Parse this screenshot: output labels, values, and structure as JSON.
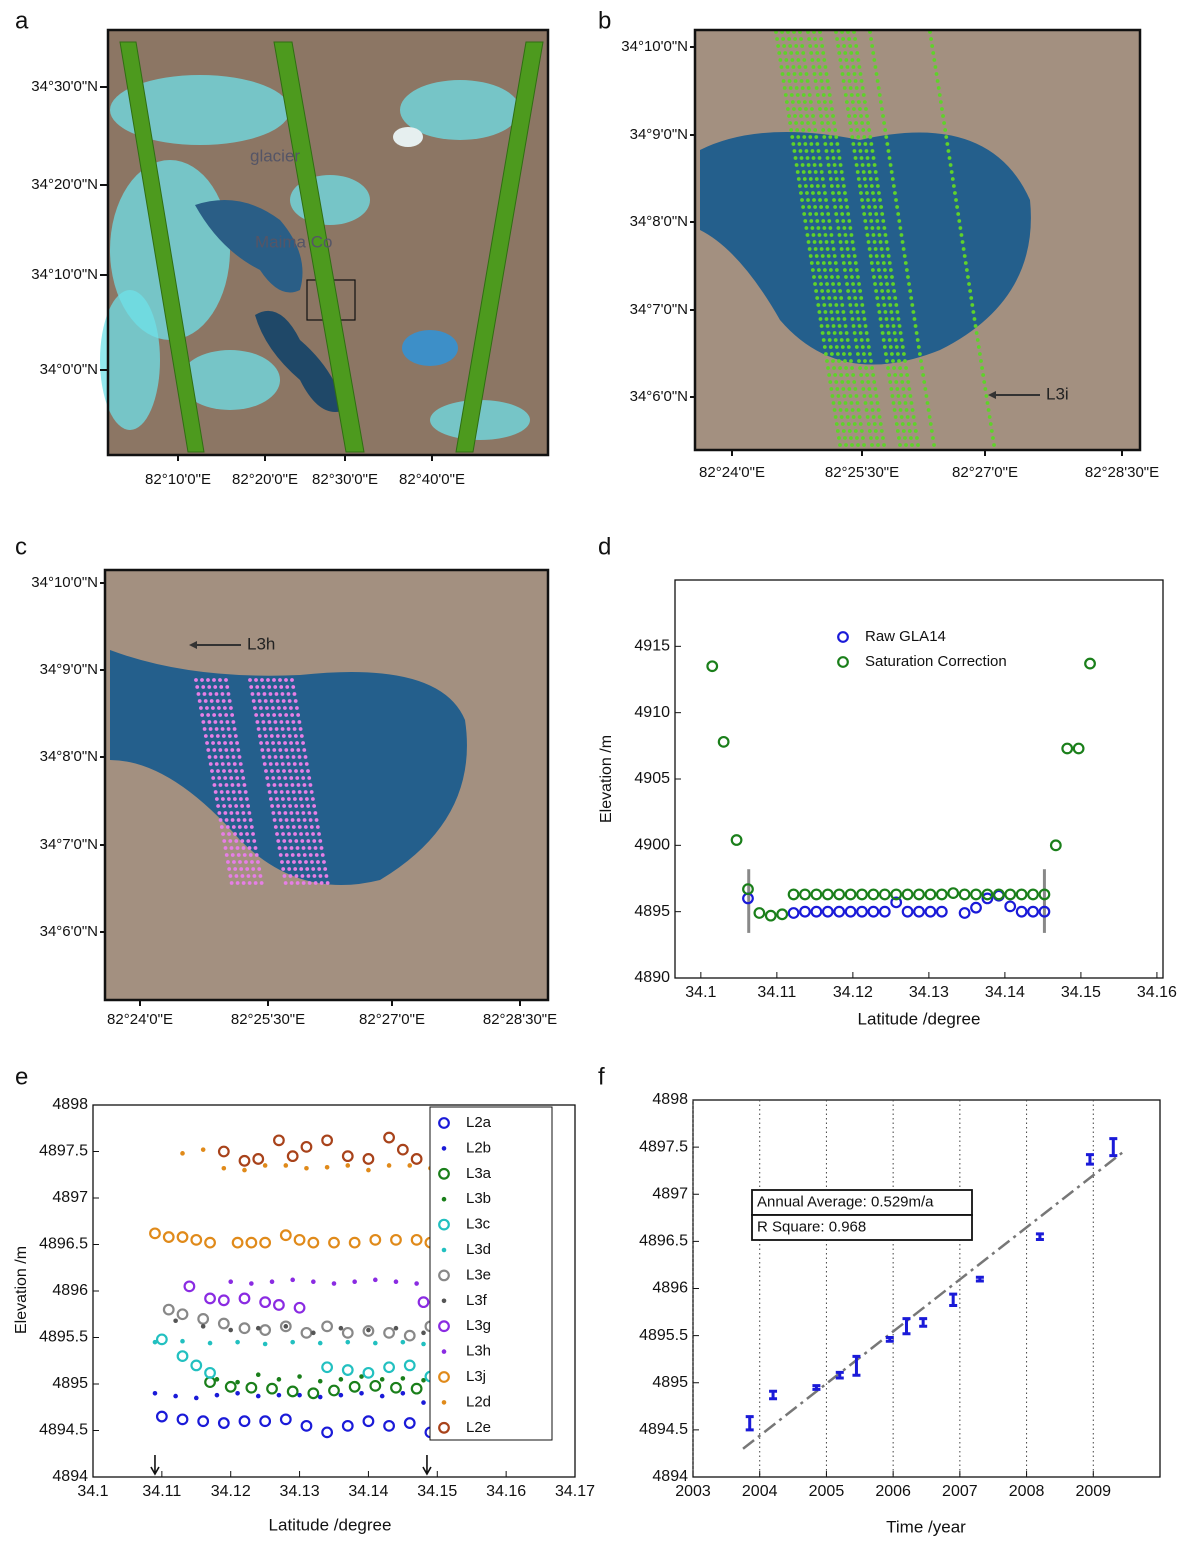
{
  "maps": [
    {
      "panel": "a",
      "yticks": [
        "34°30'0\"N",
        "34°20'0\"N",
        "34°10'0\"N",
        "34°0'0\"N"
      ],
      "xticks": [
        "82°10'0\"E",
        "82°20'0\"E",
        "82°30'0\"E",
        "82°40'0\"E"
      ],
      "annotations": [
        "glacier",
        "Maima Co"
      ]
    },
    {
      "panel": "b",
      "yticks": [
        "34°10'0\"N",
        "34°9'0\"N",
        "34°8'0\"N",
        "34°7'0\"N",
        "34°6'0\"N"
      ],
      "xticks": [
        "82°24'0\"E",
        "82°25'30\"E",
        "82°27'0\"E",
        "82°28'30\"E"
      ],
      "annotations": [
        "L3i"
      ]
    },
    {
      "panel": "c",
      "yticks": [
        "34°10'0\"N",
        "34°9'0\"N",
        "34°8'0\"N",
        "34°7'0\"N",
        "34°6'0\"N"
      ],
      "xticks": [
        "82°24'0\"E",
        "82°25'30\"E",
        "82°27'0\"E",
        "82°28'30\"E"
      ],
      "annotations": [
        "L3h"
      ]
    }
  ],
  "chart_data": [
    {
      "type": "scatter",
      "panel": "d",
      "x_label": "Latitude /degree",
      "y_label": "Elevation /m",
      "xlim": [
        34.0966,
        34.1608
      ],
      "xticks": [
        34.1,
        34.11,
        34.12,
        34.13,
        34.14,
        34.15,
        34.16
      ],
      "ylim": [
        4890,
        4920
      ],
      "yticks": [
        4890,
        4895,
        4900,
        4905,
        4910,
        4915
      ],
      "vlines": [
        34.1063,
        34.1452
      ],
      "vline_range": [
        4893.4,
        4898.2
      ],
      "series": [
        {
          "name": "Raw GLA14",
          "color": "#1a1ad8",
          "marker": "circle",
          "x": [
            34.1062,
            34.1122,
            34.1137,
            34.1152,
            34.1167,
            34.1182,
            34.1197,
            34.1212,
            34.1227,
            34.1242,
            34.1257,
            34.1272,
            34.1287,
            34.1302,
            34.1317,
            34.1347,
            34.1362,
            34.1377,
            34.1392,
            34.1407,
            34.1422,
            34.1437,
            34.1452
          ],
          "values": [
            4896.0,
            4894.9,
            4895.0,
            4895.0,
            4895.0,
            4895.0,
            4895.0,
            4895.0,
            4895.0,
            4895.0,
            4895.7,
            4895.0,
            4895.0,
            4895.0,
            4895.0,
            4894.9,
            4895.3,
            4896.0,
            4896.2,
            4895.4,
            4895.0,
            4895.0,
            4895.0
          ]
        },
        {
          "name": "Saturation Correction",
          "color": "#1a7f1a",
          "marker": "circle",
          "x": [
            34.1015,
            34.103,
            34.1047,
            34.1062,
            34.1077,
            34.1092,
            34.1107,
            34.1122,
            34.1137,
            34.1152,
            34.1167,
            34.1182,
            34.1197,
            34.1212,
            34.1227,
            34.1242,
            34.1257,
            34.1272,
            34.1287,
            34.1302,
            34.1317,
            34.1332,
            34.1347,
            34.1362,
            34.1377,
            34.1392,
            34.1407,
            34.1422,
            34.1437,
            34.1452,
            34.1467,
            34.1482,
            34.1497,
            34.1512
          ],
          "values": [
            4913.5,
            4907.8,
            4900.4,
            4896.7,
            4894.9,
            4894.7,
            4894.8,
            4896.3,
            4896.3,
            4896.3,
            4896.3,
            4896.3,
            4896.3,
            4896.3,
            4896.3,
            4896.3,
            4896.3,
            4896.3,
            4896.3,
            4896.3,
            4896.3,
            4896.4,
            4896.3,
            4896.3,
            4896.3,
            4896.3,
            4896.3,
            4896.3,
            4896.3,
            4896.3,
            4900.0,
            4907.3,
            4907.3,
            4913.7
          ]
        }
      ]
    },
    {
      "type": "scatter",
      "panel": "e",
      "x_label": "Latitude /degree",
      "y_label": "Elevation /m",
      "xlim": [
        34.1,
        34.17
      ],
      "xticks": [
        34.1,
        34.11,
        34.12,
        34.13,
        34.14,
        34.15,
        34.16,
        34.17
      ],
      "ylim": [
        4894,
        4898
      ],
      "yticks": [
        4894,
        4894.5,
        4895,
        4895.5,
        4896,
        4896.5,
        4897,
        4897.5,
        4898
      ],
      "arrows": [
        34.109,
        34.1485
      ],
      "series": [
        {
          "name": "L2a",
          "color": "#1a1ad8",
          "marker": "circle",
          "x": [
            34.11,
            34.113,
            34.116,
            34.119,
            34.122,
            34.125,
            34.128,
            34.131,
            34.134,
            34.137,
            34.14,
            34.143,
            34.146,
            34.149
          ],
          "values": [
            4894.65,
            4894.62,
            4894.6,
            4894.58,
            4894.6,
            4894.6,
            4894.62,
            4894.55,
            4894.48,
            4894.55,
            4894.6,
            4894.55,
            4894.58,
            4894.48
          ]
        },
        {
          "name": "L2b",
          "color": "#1a1ad8",
          "marker": "dot",
          "x": [
            34.109,
            34.112,
            34.115,
            34.118,
            34.121,
            34.124,
            34.127,
            34.13,
            34.133,
            34.136,
            34.139,
            34.142,
            34.145,
            34.148
          ],
          "values": [
            4894.9,
            4894.87,
            4894.85,
            4894.88,
            4894.9,
            4894.87,
            4894.88,
            4894.88,
            4894.86,
            4894.88,
            4894.9,
            4894.87,
            4894.9,
            4894.8
          ]
        },
        {
          "name": "L3a",
          "color": "#1a7f1a",
          "marker": "circle",
          "x": [
            34.117,
            34.12,
            34.123,
            34.126,
            34.129,
            34.132,
            34.135,
            34.138,
            34.141,
            34.144,
            34.147
          ],
          "values": [
            4895.02,
            4894.97,
            4894.96,
            4894.95,
            4894.92,
            4894.9,
            4894.93,
            4894.97,
            4894.98,
            4894.96,
            4894.95
          ]
        },
        {
          "name": "L3b",
          "color": "#1a7f1a",
          "marker": "dot",
          "x": [
            34.118,
            34.121,
            34.124,
            34.127,
            34.13,
            34.133,
            34.136,
            34.139,
            34.142,
            34.145,
            34.148
          ],
          "values": [
            4895.05,
            4895.02,
            4895.1,
            4895.05,
            4895.08,
            4895.03,
            4895.05,
            4895.08,
            4895.05,
            4895.06,
            4895.04
          ]
        },
        {
          "name": "L3c",
          "color": "#22c0c0",
          "marker": "circle",
          "x": [
            34.11,
            34.113,
            34.115,
            34.117,
            34.134,
            34.137,
            34.14,
            34.143,
            34.146,
            34.149
          ],
          "values": [
            4895.48,
            4895.3,
            4895.2,
            4895.12,
            4895.18,
            4895.15,
            4895.12,
            4895.18,
            4895.2,
            4895.08
          ]
        },
        {
          "name": "L3d",
          "color": "#22c0c0",
          "marker": "dot",
          "x": [
            34.109,
            34.113,
            34.117,
            34.121,
            34.125,
            34.129,
            34.133,
            34.137,
            34.141,
            34.145,
            34.148
          ],
          "values": [
            4895.45,
            4895.46,
            4895.44,
            4895.45,
            4895.43,
            4895.45,
            4895.44,
            4895.45,
            4895.44,
            4895.45,
            4895.43
          ]
        },
        {
          "name": "L3e",
          "color": "#888888",
          "marker": "circle",
          "x": [
            34.111,
            34.113,
            34.116,
            34.119,
            34.122,
            34.125,
            34.128,
            34.131,
            34.134,
            34.137,
            34.14,
            34.143,
            34.146,
            34.149
          ],
          "values": [
            4895.8,
            4895.75,
            4895.7,
            4895.65,
            4895.6,
            4895.58,
            4895.62,
            4895.55,
            4895.62,
            4895.55,
            4895.57,
            4895.55,
            4895.52,
            4895.62
          ]
        },
        {
          "name": "L3f",
          "color": "#555555",
          "marker": "dot",
          "x": [
            34.112,
            34.116,
            34.12,
            34.124,
            34.128,
            34.132,
            34.136,
            34.14,
            34.144,
            34.148
          ],
          "values": [
            4895.68,
            4895.62,
            4895.58,
            4895.6,
            4895.62,
            4895.55,
            4895.6,
            4895.58,
            4895.6,
            4895.55
          ]
        },
        {
          "name": "L3g",
          "color": "#8a2be2",
          "marker": "circle",
          "x": [
            34.114,
            34.117,
            34.119,
            34.122,
            34.125,
            34.127,
            34.13,
            34.148
          ],
          "values": [
            4896.05,
            4895.92,
            4895.9,
            4895.92,
            4895.88,
            4895.85,
            4895.82,
            4895.88
          ]
        },
        {
          "name": "L3h",
          "color": "#8a2be2",
          "marker": "dot",
          "x": [
            34.12,
            34.123,
            34.126,
            34.129,
            34.132,
            34.135,
            34.138,
            34.141,
            34.144,
            34.147
          ],
          "values": [
            4896.1,
            4896.08,
            4896.1,
            4896.12,
            4896.1,
            4896.08,
            4896.1,
            4896.12,
            4896.1,
            4896.08
          ]
        },
        {
          "name": "L3j",
          "color": "#e08a1a",
          "marker": "circle",
          "x": [
            34.109,
            34.111,
            34.113,
            34.115,
            34.117,
            34.121,
            34.123,
            34.125,
            34.128,
            34.13,
            34.132,
            34.135,
            34.138,
            34.141,
            34.144,
            34.147,
            34.149
          ],
          "values": [
            4896.62,
            4896.58,
            4896.58,
            4896.55,
            4896.52,
            4896.52,
            4896.52,
            4896.52,
            4896.6,
            4896.55,
            4896.52,
            4896.52,
            4896.52,
            4896.55,
            4896.55,
            4896.55,
            4896.52
          ]
        },
        {
          "name": "L2d",
          "color": "#e08a1a",
          "marker": "dot",
          "x": [
            34.113,
            34.116,
            34.119,
            34.122,
            34.125,
            34.128,
            34.131,
            34.134,
            34.137,
            34.14,
            34.143,
            34.146,
            34.149
          ],
          "values": [
            4897.48,
            4897.52,
            4897.32,
            4897.3,
            4897.35,
            4897.35,
            4897.32,
            4897.33,
            4897.35,
            4897.3,
            4897.35,
            4897.35,
            4897.32
          ]
        },
        {
          "name": "L2e",
          "color": "#a8421a",
          "marker": "circle",
          "x": [
            34.119,
            34.122,
            34.124,
            34.127,
            34.129,
            34.131,
            34.134,
            34.137,
            34.14,
            34.143,
            34.145,
            34.147
          ],
          "values": [
            4897.5,
            4897.4,
            4897.42,
            4897.62,
            4897.45,
            4897.55,
            4897.62,
            4897.45,
            4897.42,
            4897.65,
            4897.52,
            4897.42
          ]
        }
      ]
    },
    {
      "type": "errorbar",
      "panel": "f",
      "x_label": "Time  /year",
      "xlim": [
        2003,
        2010
      ],
      "xticks": [
        2003,
        2004,
        2005,
        2006,
        2007,
        2008,
        2009
      ],
      "ylim": [
        4894,
        4898
      ],
      "yticks": [
        4894,
        4894.5,
        4895,
        4895.5,
        4896,
        4896.5,
        4897,
        4897.5,
        4898
      ],
      "xgrid": true,
      "annotations": [
        "Annual Average: 0.529m/a",
        "R Square: 0.968"
      ],
      "series": [
        {
          "color": "#1a1ad8",
          "x": [
            2003.85,
            2004.2,
            2004.85,
            2005.2,
            2005.45,
            2005.95,
            2006.2,
            2006.45,
            2006.9,
            2007.3,
            2008.2,
            2008.95,
            2009.3
          ],
          "values": [
            4894.57,
            4894.87,
            4894.95,
            4895.08,
            4895.18,
            4895.46,
            4895.6,
            4895.64,
            4895.88,
            4896.1,
            4896.55,
            4897.37,
            4897.5
          ],
          "errors": [
            0.07,
            0.04,
            0.02,
            0.03,
            0.1,
            0.02,
            0.08,
            0.04,
            0.06,
            0.02,
            0.03,
            0.05,
            0.09
          ]
        }
      ],
      "trend": {
        "color": "#777777",
        "x": [
          2003.75,
          2009.45
        ],
        "values": [
          4894.3,
          4897.45
        ]
      }
    }
  ]
}
